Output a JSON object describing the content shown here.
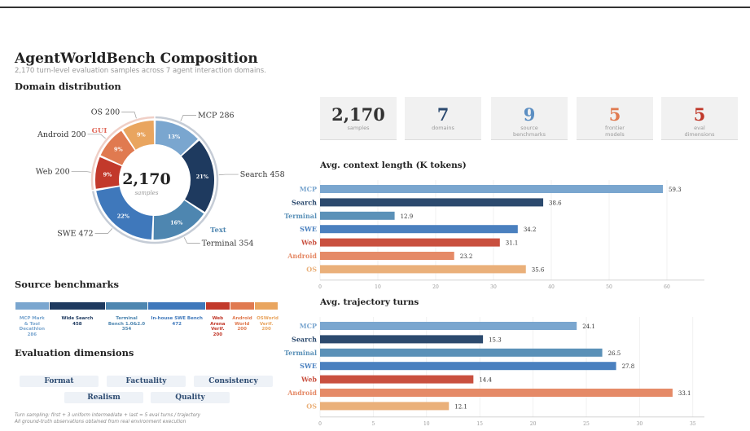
{
  "header": {
    "title": "AgentWorldBench Composition",
    "subtitle": "2,170 turn-level evaluation samples across 7 agent interaction domains."
  },
  "sections": {
    "domain_distribution": "Domain distribution",
    "source_benchmarks": "Source benchmarks",
    "evaluation_dimensions": "Evaluation dimensions"
  },
  "stats": [
    {
      "value": "2,170",
      "label": "samples",
      "color": "#333333"
    },
    {
      "value": "7",
      "label": "domains",
      "color": "#2c4a70"
    },
    {
      "value": "9",
      "label": "source benchmarks",
      "color": "#5b8ec2"
    },
    {
      "value": "5",
      "label": "frontier models",
      "color": "#e07a50"
    },
    {
      "value": "5",
      "label": "eval dimensions",
      "color": "#c0392b"
    }
  ],
  "source_benchmarks": [
    {
      "name": "MCP Mark & Tool Decathlon",
      "count": "286",
      "color": "#7aa6cf"
    },
    {
      "name": "Wide Search",
      "count": "458",
      "color": "#1e3a5f"
    },
    {
      "name": "Terminal Bench 1.0&2.0",
      "count": "354",
      "color": "#4e86b0"
    },
    {
      "name": "In-house SWE Bench",
      "count": "472",
      "color": "#3f78bb"
    },
    {
      "name": "Web Arena Verif.",
      "count": "200",
      "color": "#c2392b"
    },
    {
      "name": "Android World",
      "count": "200",
      "color": "#e07a50"
    },
    {
      "name": "OSWorld Verif.",
      "count": "200",
      "color": "#e9a55f"
    }
  ],
  "evaluation_dimensions": [
    "Format",
    "Factuality",
    "Consistency",
    "Realism",
    "Quality"
  ],
  "footnote": {
    "line1": "Turn sampling: first + 3 uniform intermediate + last = 5 eval turns / trajectory",
    "line2": "All ground-truth observations obtained from real environment execution"
  },
  "chart_data": [
    {
      "type": "pie",
      "title": "Domain distribution",
      "center_value": "2,170",
      "center_label": "samples",
      "group_labels": [
        "Text",
        "GUI"
      ],
      "slices": [
        {
          "label": "MCP",
          "value": 286,
          "pct": "13%",
          "color": "#7aa6cf"
        },
        {
          "label": "Search",
          "value": 458,
          "pct": "21%",
          "color": "#1e3a5f"
        },
        {
          "label": "Terminal",
          "value": 354,
          "pct": "16%",
          "color": "#4e86b0"
        },
        {
          "label": "SWE",
          "value": 472,
          "pct": "22%",
          "color": "#3f78bb"
        },
        {
          "label": "Web",
          "value": 200,
          "pct": "9%",
          "color": "#c2392b"
        },
        {
          "label": "Android",
          "value": 200,
          "pct": "9%",
          "color": "#e07a50"
        },
        {
          "label": "OS",
          "value": 200,
          "pct": "9%",
          "color": "#e9a55f"
        }
      ]
    },
    {
      "type": "bar",
      "orientation": "horizontal",
      "title": "Avg. context length (K tokens)",
      "categories": [
        "MCP",
        "Search",
        "Terminal",
        "SWE",
        "Web",
        "Android",
        "OS"
      ],
      "values": [
        59.3,
        38.6,
        12.9,
        34.2,
        31.1,
        23.2,
        35.6
      ],
      "colors": [
        "#7aa6cf",
        "#2c4a6e",
        "#5b91b8",
        "#4a80bf",
        "#c9503f",
        "#e58a67",
        "#eab07a"
      ],
      "xlim": [
        0,
        70
      ],
      "xticks": [
        0,
        10,
        20,
        30,
        40,
        50,
        60,
        70
      ],
      "grid": true
    },
    {
      "type": "bar",
      "orientation": "horizontal",
      "title": "Avg. trajectory turns",
      "categories": [
        "MCP",
        "Search",
        "Terminal",
        "SWE",
        "Web",
        "Android",
        "OS"
      ],
      "values": [
        24.1,
        15.3,
        26.5,
        27.8,
        14.4,
        33.1,
        12.1
      ],
      "colors": [
        "#7aa6cf",
        "#2c4a6e",
        "#5b91b8",
        "#4a80bf",
        "#c9503f",
        "#e58a67",
        "#eab07a"
      ],
      "xlim": [
        0,
        38
      ],
      "xticks": [
        0,
        5,
        10,
        15,
        20,
        25,
        30,
        35
      ],
      "grid": true
    }
  ]
}
